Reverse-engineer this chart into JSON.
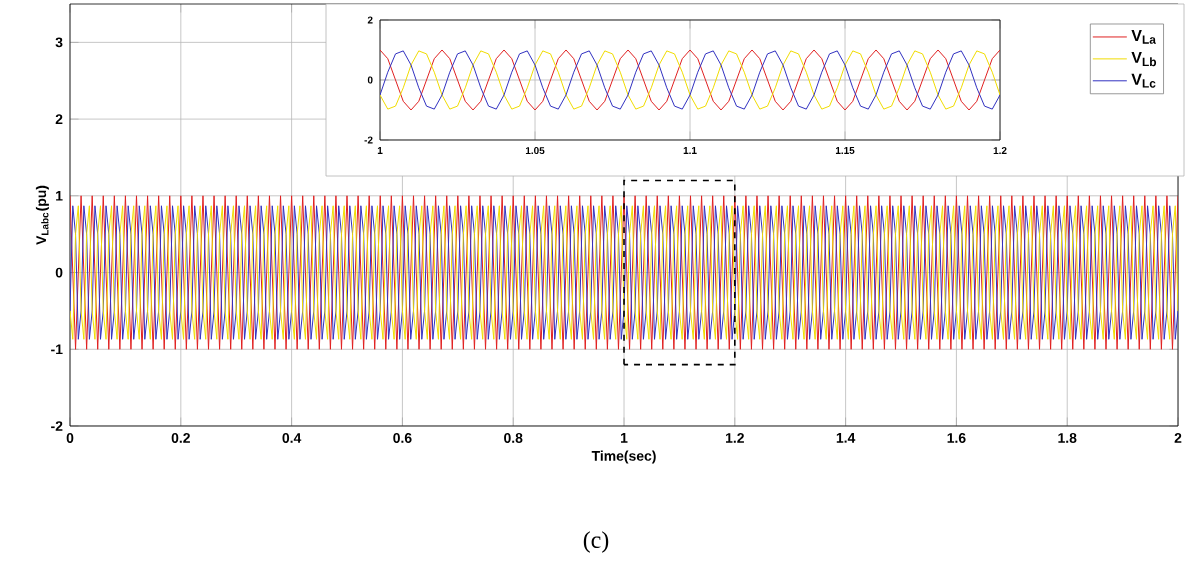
{
  "chart_data": [
    {
      "type": "line",
      "xlabel": "Time(sec)",
      "ylabel": "V$_{Labc}$(pu)",
      "xlim": [
        0,
        2
      ],
      "ylim": [
        -2,
        3.5
      ],
      "xticks": [
        0,
        0.2,
        0.4,
        0.6,
        0.8,
        1,
        1.2,
        1.4,
        1.6,
        1.8,
        2
      ],
      "yticks": [
        -2,
        -1,
        0,
        1,
        2,
        3
      ],
      "grid": true,
      "x": [
        0,
        0.005,
        0.01,
        0.015,
        0.02,
        0.025,
        0.03,
        0.035,
        0.04,
        0.045,
        0.05,
        0.055,
        0.06,
        0.065,
        0.07,
        0.075,
        0.08,
        0.085,
        0.09,
        0.095,
        0.1,
        0.105,
        0.11,
        0.115,
        0.12,
        0.125,
        0.13,
        0.135,
        0.14,
        0.145,
        0.15,
        0.155,
        0.16,
        0.165,
        0.17,
        0.175,
        0.18,
        0.185,
        0.19,
        0.195,
        0.2,
        0.205,
        0.21,
        0.215,
        0.22,
        0.225,
        0.23,
        0.235,
        0.24,
        0.245,
        0.25,
        0.255,
        0.26,
        0.265,
        0.27,
        0.275,
        0.28,
        0.285,
        0.29,
        0.295,
        0.3,
        0.305,
        0.31,
        0.315,
        0.32,
        0.325,
        0.33,
        0.335,
        0.34,
        0.345,
        0.35,
        0.355,
        0.36,
        0.365,
        0.37,
        0.375,
        0.38,
        0.385,
        0.39,
        0.395,
        0.4,
        0.405,
        0.41,
        0.415,
        0.42,
        0.425,
        0.43,
        0.435,
        0.44,
        0.445,
        0.45,
        0.455,
        0.46,
        0.465,
        0.47,
        0.475,
        0.48,
        0.485,
        0.49,
        0.495,
        0.5,
        0.505,
        0.51,
        0.515,
        0.52,
        0.525,
        0.53,
        0.535,
        0.54,
        0.545,
        0.55,
        0.555,
        0.56,
        0.565,
        0.57,
        0.575,
        0.58,
        0.585,
        0.59,
        0.595,
        0.6,
        0.605,
        0.61,
        0.615,
        0.62,
        0.625,
        0.63,
        0.635,
        0.64,
        0.645,
        0.65,
        0.655,
        0.66,
        0.665,
        0.67,
        0.675,
        0.68,
        0.685,
        0.69,
        0.695,
        0.7,
        0.705,
        0.71,
        0.715,
        0.72,
        0.725,
        0.73,
        0.735,
        0.74,
        0.745,
        0.75,
        0.755,
        0.76,
        0.765,
        0.77,
        0.775,
        0.78,
        0.785,
        0.79,
        0.795,
        0.8,
        0.805,
        0.81,
        0.815,
        0.82,
        0.825,
        0.83,
        0.835,
        0.84,
        0.845,
        0.85,
        0.855,
        0.86,
        0.865,
        0.87,
        0.875,
        0.88,
        0.885,
        0.89,
        0.895,
        0.9,
        0.905,
        0.91,
        0.915,
        0.92,
        0.925,
        0.93,
        0.935,
        0.94,
        0.945,
        0.95,
        0.955,
        0.96,
        0.965,
        0.97,
        0.975,
        0.98,
        0.985,
        0.99,
        0.995,
        1,
        1.005,
        1.01,
        1.015,
        1.02,
        1.025,
        1.03,
        1.035,
        1.04,
        1.045,
        1.05,
        1.055,
        1.06,
        1.065,
        1.07,
        1.075,
        1.08,
        1.085,
        1.09,
        1.095,
        1.1,
        1.105,
        1.11,
        1.115,
        1.12,
        1.125,
        1.13,
        1.135,
        1.14,
        1.145,
        1.15,
        1.155,
        1.16,
        1.165,
        1.17,
        1.175,
        1.18,
        1.185,
        1.19,
        1.195,
        1.2,
        1.205,
        1.21,
        1.215,
        1.22,
        1.225,
        1.23,
        1.235,
        1.24,
        1.245,
        1.25,
        1.255,
        1.26,
        1.265,
        1.27,
        1.275,
        1.28,
        1.285,
        1.29,
        1.295,
        1.3,
        1.305,
        1.31,
        1.315,
        1.32,
        1.325,
        1.33,
        1.335,
        1.34,
        1.345,
        1.35,
        1.355,
        1.36,
        1.365,
        1.37,
        1.375,
        1.38,
        1.385,
        1.39,
        1.395,
        1.4,
        1.405,
        1.41,
        1.415,
        1.42,
        1.425,
        1.43,
        1.435,
        1.44,
        1.445,
        1.45,
        1.455,
        1.46,
        1.465,
        1.47,
        1.475,
        1.48,
        1.485,
        1.49,
        1.495,
        1.5,
        1.505,
        1.51,
        1.515,
        1.52,
        1.525,
        1.53,
        1.535,
        1.54,
        1.545,
        1.55,
        1.555,
        1.56,
        1.565,
        1.57,
        1.575,
        1.58,
        1.585,
        1.59,
        1.595,
        1.6,
        1.605,
        1.61,
        1.615,
        1.62,
        1.625,
        1.63,
        1.635,
        1.64,
        1.645,
        1.65,
        1.655,
        1.66,
        1.665,
        1.67,
        1.675,
        1.68,
        1.685,
        1.69,
        1.695,
        1.7,
        1.705,
        1.71,
        1.715,
        1.72,
        1.725,
        1.73,
        1.735,
        1.74,
        1.745,
        1.75,
        1.755,
        1.76,
        1.765,
        1.77,
        1.775,
        1.78,
        1.785,
        1.79,
        1.795,
        1.8,
        1.805,
        1.81,
        1.815,
        1.82,
        1.825,
        1.83,
        1.835,
        1.84,
        1.845,
        1.85,
        1.855,
        1.86,
        1.865,
        1.87,
        1.875,
        1.88,
        1.885,
        1.89,
        1.895,
        1.9,
        1.905,
        1.91,
        1.915,
        1.92,
        1.925,
        1.93,
        1.935,
        1.94,
        1.945,
        1.95,
        1.955,
        1.96,
        1.965,
        1.97,
        1.975,
        1.98,
        1.985,
        1.99,
        1.995,
        2
      ],
      "series": [
        {
          "color": "#e02020",
          "values": [
            1,
            0,
            -1,
            0,
            1,
            0,
            -1,
            0,
            1,
            0,
            -1,
            0,
            1,
            0,
            -1,
            0,
            1,
            0,
            -1,
            0,
            1,
            0,
            -1,
            0,
            1,
            0,
            -1,
            0,
            1,
            0,
            -1,
            0,
            1,
            0,
            -1,
            0,
            1,
            0,
            -1,
            0,
            1,
            0,
            -1,
            0,
            1,
            0,
            -1,
            0,
            1,
            0,
            -1,
            0,
            1,
            0,
            -1,
            0,
            1,
            0,
            -1,
            0,
            1,
            0,
            -1,
            0,
            1,
            0,
            -1,
            0,
            1,
            0,
            -1,
            0,
            1,
            0,
            -1,
            0,
            1,
            0,
            -1,
            0,
            1,
            0,
            -1,
            0,
            1,
            0,
            -1,
            0,
            1,
            0,
            -1,
            0,
            1,
            0,
            -1,
            0,
            1,
            0,
            -1,
            0,
            1,
            0,
            -1,
            0,
            1,
            0,
            -1,
            0,
            1,
            0,
            -1,
            0,
            1,
            0,
            -1,
            0,
            1,
            0,
            -1,
            0,
            1,
            0,
            -1,
            0,
            1,
            0,
            -1,
            0,
            1,
            0,
            -1,
            0,
            1,
            0,
            -1,
            0,
            1,
            0,
            -1,
            0,
            1,
            0,
            -1,
            0,
            1,
            0,
            -1,
            0,
            1,
            0,
            -1,
            0,
            1,
            0,
            -1,
            0,
            1,
            0,
            -1,
            0,
            1,
            0,
            -1,
            0,
            1,
            0,
            -1,
            0,
            1,
            0,
            -1,
            0,
            1,
            0,
            -1,
            0,
            1,
            0,
            -1,
            0,
            1,
            0,
            -1,
            0,
            1,
            0,
            -1,
            0,
            1,
            0,
            -1,
            0,
            1,
            0,
            -1,
            0,
            1,
            0,
            -1,
            0,
            1,
            0,
            -1,
            0,
            1,
            0,
            -1,
            0,
            1,
            0,
            -1,
            0,
            1,
            0,
            -1,
            0,
            1,
            0,
            -1,
            0,
            1,
            0,
            -1,
            0,
            1,
            0,
            -1,
            0,
            1,
            0,
            -1,
            0,
            1,
            0,
            -1,
            0,
            1,
            0,
            -1,
            0,
            1,
            0,
            -1,
            0,
            1,
            0,
            -1,
            0,
            1,
            0,
            -1,
            0,
            1,
            0,
            -1,
            0,
            1,
            0,
            -1,
            0,
            1,
            0,
            -1,
            0,
            1,
            0,
            -1,
            0,
            1,
            0,
            -1,
            0,
            1,
            0,
            -1,
            0,
            1,
            0,
            -1,
            0,
            1,
            0,
            -1,
            0,
            1,
            0,
            -1,
            0,
            1,
            0,
            -1,
            0,
            1,
            0,
            -1,
            0,
            1,
            0,
            -1,
            0,
            1,
            0,
            -1,
            0,
            1,
            0,
            -1,
            0,
            1,
            0,
            -1,
            0,
            1,
            0,
            -1,
            0,
            1,
            0,
            -1,
            0,
            1,
            0,
            -1,
            0,
            1,
            0,
            -1,
            0,
            1,
            0,
            -1,
            0,
            1,
            0,
            -1,
            0,
            1,
            0,
            -1,
            0,
            1,
            0,
            -1,
            0,
            1,
            0,
            -1,
            0,
            1,
            0,
            -1,
            0,
            1,
            0,
            -1,
            0,
            1,
            0,
            -1,
            0,
            1,
            0,
            -1,
            0,
            1,
            0,
            -1,
            0,
            1,
            0,
            -1,
            0,
            1,
            0,
            -1,
            0,
            1,
            0,
            -1,
            0,
            1,
            0,
            -1,
            0,
            1,
            0,
            -1,
            0,
            1,
            0,
            -1,
            0,
            1,
            0,
            -1,
            0,
            1,
            0,
            -1,
            0,
            1
          ]
        },
        {
          "color": "#3030c0",
          "values": [
            -0.5,
            0.87,
            0.5,
            -0.87,
            -0.5,
            0.87,
            0.5,
            -0.87,
            -0.5,
            0.87,
            0.5,
            -0.87,
            -0.5,
            0.87,
            0.5,
            -0.87,
            -0.5,
            0.87,
            0.5,
            -0.87,
            -0.5,
            0.87,
            0.5,
            -0.87,
            -0.5,
            0.87,
            0.5,
            -0.87,
            -0.5,
            0.87,
            0.5,
            -0.87,
            -0.5,
            0.87,
            0.5,
            -0.87,
            -0.5,
            0.87,
            0.5,
            -0.87,
            -0.5,
            0.87,
            0.5,
            -0.87,
            -0.5,
            0.87,
            0.5,
            -0.87,
            -0.5,
            0.87,
            0.5,
            -0.87,
            -0.5,
            0.87,
            0.5,
            -0.87,
            -0.5,
            0.87,
            0.5,
            -0.87,
            -0.5,
            0.87,
            0.5,
            -0.87,
            -0.5,
            0.87,
            0.5,
            -0.87,
            -0.5,
            0.87,
            0.5,
            -0.87,
            -0.5,
            0.87,
            0.5,
            -0.87,
            -0.5,
            0.87,
            0.5,
            -0.87,
            -0.5,
            0.87,
            0.5,
            -0.87,
            -0.5,
            0.87,
            0.5,
            -0.87,
            -0.5,
            0.87,
            0.5,
            -0.87,
            -0.5,
            0.87,
            0.5,
            -0.87,
            -0.5,
            0.87,
            0.5,
            -0.87,
            -0.5,
            0.87,
            0.5,
            -0.87,
            -0.5,
            0.87,
            0.5,
            -0.87,
            -0.5,
            0.87,
            0.5,
            -0.87,
            -0.5,
            0.87,
            0.5,
            -0.87,
            -0.5,
            0.87,
            0.5,
            -0.87,
            -0.5,
            0.87,
            0.5,
            -0.87,
            -0.5,
            0.87,
            0.5,
            -0.87,
            -0.5,
            0.87,
            0.5,
            -0.87,
            -0.5,
            0.87,
            0.5,
            -0.87,
            -0.5,
            0.87,
            0.5,
            -0.87,
            -0.5,
            0.87,
            0.5,
            -0.87,
            -0.5,
            0.87,
            0.5,
            -0.87,
            -0.5,
            0.87,
            0.5,
            -0.87,
            -0.5,
            0.87,
            0.5,
            -0.87,
            -0.5,
            0.87,
            0.5,
            -0.87,
            -0.5,
            0.87,
            0.5,
            -0.87,
            -0.5,
            0.87,
            0.5,
            -0.87,
            -0.5,
            0.87,
            0.5,
            -0.87,
            -0.5,
            0.87,
            0.5,
            -0.87,
            -0.5,
            0.87,
            0.5,
            -0.87,
            -0.5,
            0.87,
            0.5,
            -0.87,
            -0.5,
            0.87,
            0.5,
            -0.87,
            -0.5,
            0.87,
            0.5,
            -0.87,
            -0.5,
            0.87,
            0.5,
            -0.87,
            -0.5,
            0.87,
            0.5,
            -0.87,
            -0.5,
            0.87,
            0.5,
            -0.87,
            -0.5,
            0.87,
            0.5,
            -0.87,
            -0.5,
            0.87,
            0.5,
            -0.87,
            -0.5,
            0.87,
            0.5,
            -0.87,
            -0.5,
            0.87,
            0.5,
            -0.87,
            -0.5,
            0.87,
            0.5,
            -0.87,
            -0.5,
            0.87,
            0.5,
            -0.87,
            -0.5,
            0.87,
            0.5,
            -0.87,
            -0.5,
            0.87,
            0.5,
            -0.87,
            -0.5,
            0.87,
            0.5,
            -0.87,
            -0.5,
            0.87,
            0.5,
            -0.87,
            -0.5,
            0.87,
            0.5,
            -0.87,
            -0.5,
            0.87,
            0.5,
            -0.87,
            -0.5,
            0.87,
            0.5,
            -0.87,
            -0.5,
            0.87,
            0.5,
            -0.87,
            -0.5,
            0.87,
            0.5,
            -0.87,
            -0.5,
            0.87,
            0.5,
            -0.87,
            -0.5,
            0.87,
            0.5,
            -0.87,
            -0.5,
            0.87,
            0.5,
            -0.87,
            -0.5,
            0.87,
            0.5,
            -0.87,
            -0.5,
            0.87,
            0.5,
            -0.87,
            -0.5,
            0.87,
            0.5,
            -0.87,
            -0.5,
            0.87,
            0.5,
            -0.87,
            -0.5,
            0.87,
            0.5,
            -0.87,
            -0.5,
            0.87,
            0.5,
            -0.87,
            -0.5,
            0.87,
            0.5,
            -0.87,
            -0.5,
            0.87,
            0.5,
            -0.87,
            -0.5,
            0.87,
            0.5,
            -0.87,
            -0.5,
            0.87,
            0.5,
            -0.87,
            -0.5,
            0.87,
            0.5,
            -0.87,
            -0.5,
            0.87,
            0.5,
            -0.87,
            -0.5,
            0.87,
            0.5,
            -0.87,
            -0.5,
            0.87,
            0.5,
            -0.87,
            -0.5,
            0.87,
            0.5,
            -0.87,
            -0.5,
            0.87,
            0.5,
            -0.87,
            -0.5,
            0.87,
            0.5,
            -0.87,
            -0.5,
            0.87,
            0.5,
            -0.87,
            -0.5,
            0.87,
            0.5,
            -0.87,
            -0.5,
            0.87,
            0.5,
            -0.87,
            -0.5,
            0.87,
            0.5,
            -0.87,
            -0.5,
            0.87,
            0.5,
            -0.87,
            -0.5,
            0.87,
            0.5,
            -0.87,
            -0.5,
            0.87,
            0.5,
            -0.87,
            -0.5,
            0.87,
            0.5,
            -0.87,
            -0.5,
            0.87,
            0.5,
            -0.87,
            -0.5,
            0.87,
            0.5,
            -0.87,
            -0.5,
            0.87,
            0.5,
            -0.87,
            -0.5,
            0.87,
            0.5,
            -0.87,
            -0.5,
            0.87,
            0.5,
            -0.87,
            -0.5,
            0.87,
            0.5,
            -0.87,
            -0.5
          ]
        },
        {
          "color": "#f0dc00",
          "values": [
            -0.5,
            -0.87,
            0.5,
            0.87,
            -0.5,
            -0.87,
            0.5,
            0.87,
            -0.5,
            -0.87,
            0.5,
            0.87,
            -0.5,
            -0.87,
            0.5,
            0.87,
            -0.5,
            -0.87,
            0.5,
            0.87,
            -0.5,
            -0.87,
            0.5,
            0.87,
            -0.5,
            -0.87,
            0.5,
            0.87,
            -0.5,
            -0.87,
            0.5,
            0.87,
            -0.5,
            -0.87,
            0.5,
            0.87,
            -0.5,
            -0.87,
            0.5,
            0.87,
            -0.5,
            -0.87,
            0.5,
            0.87,
            -0.5,
            -0.87,
            0.5,
            0.87,
            -0.5,
            -0.87,
            0.5,
            0.87,
            -0.5,
            -0.87,
            0.5,
            0.87,
            -0.5,
            -0.87,
            0.5,
            0.87,
            -0.5,
            -0.87,
            0.5,
            0.87,
            -0.5,
            -0.87,
            0.5,
            0.87,
            -0.5,
            -0.87,
            0.5,
            0.87,
            -0.5,
            -0.87,
            0.5,
            0.87,
            -0.5,
            -0.87,
            0.5,
            0.87,
            -0.5,
            -0.87,
            0.5,
            0.87,
            -0.5,
            -0.87,
            0.5,
            0.87,
            -0.5,
            -0.87,
            0.5,
            0.87,
            -0.5,
            -0.87,
            0.5,
            0.87,
            -0.5,
            -0.87,
            0.5,
            0.87,
            -0.5,
            -0.87,
            0.5,
            0.87,
            -0.5,
            -0.87,
            0.5,
            0.87,
            -0.5,
            -0.87,
            0.5,
            0.87,
            -0.5,
            -0.87,
            0.5,
            0.87,
            -0.5,
            -0.87,
            0.5,
            0.87,
            -0.5,
            -0.87,
            0.5,
            0.87,
            -0.5,
            -0.87,
            0.5,
            0.87,
            -0.5,
            -0.87,
            0.5,
            0.87,
            -0.5,
            -0.87,
            0.5,
            0.87,
            -0.5,
            -0.87,
            0.5,
            0.87,
            -0.5,
            -0.87,
            0.5,
            0.87,
            -0.5,
            -0.87,
            0.5,
            0.87,
            -0.5,
            -0.87,
            0.5,
            0.87,
            -0.5,
            -0.87,
            0.5,
            0.87,
            -0.5,
            -0.87,
            0.5,
            0.87,
            -0.5,
            -0.87,
            0.5,
            0.87,
            -0.5,
            -0.87,
            0.5,
            0.87,
            -0.5,
            -0.87,
            0.5,
            0.87,
            -0.5,
            -0.87,
            0.5,
            0.87,
            -0.5,
            -0.87,
            0.5,
            0.87,
            -0.5,
            -0.87,
            0.5,
            0.87,
            -0.5,
            -0.87,
            0.5,
            0.87,
            -0.5,
            -0.87,
            0.5,
            0.87,
            -0.5,
            -0.87,
            0.5,
            0.87,
            -0.5,
            -0.87,
            0.5,
            0.87,
            -0.5,
            -0.87,
            0.5,
            0.87,
            -0.5,
            -0.87,
            0.5,
            0.87,
            -0.5,
            -0.87,
            0.5,
            0.87,
            -0.5,
            -0.87,
            0.5,
            0.87,
            -0.5,
            -0.87,
            0.5,
            0.87,
            -0.5,
            -0.87,
            0.5,
            0.87,
            -0.5,
            -0.87,
            0.5,
            0.87,
            -0.5,
            -0.87,
            0.5,
            0.87,
            -0.5,
            -0.87,
            0.5,
            0.87,
            -0.5,
            -0.87,
            0.5,
            0.87,
            -0.5,
            -0.87,
            0.5,
            0.87,
            -0.5,
            -0.87,
            0.5,
            0.87,
            -0.5,
            -0.87,
            0.5,
            0.87,
            -0.5,
            -0.87,
            0.5,
            0.87,
            -0.5,
            -0.87,
            0.5,
            0.87,
            -0.5,
            -0.87,
            0.5,
            0.87,
            -0.5,
            -0.87,
            0.5,
            0.87,
            -0.5,
            -0.87,
            0.5,
            0.87,
            -0.5,
            -0.87,
            0.5,
            0.87,
            -0.5,
            -0.87,
            0.5,
            0.87,
            -0.5,
            -0.87,
            0.5,
            0.87,
            -0.5,
            -0.87,
            0.5,
            0.87,
            -0.5,
            -0.87,
            0.5,
            0.87,
            -0.5,
            -0.87,
            0.5,
            0.87,
            -0.5,
            -0.87,
            0.5,
            0.87,
            -0.5,
            -0.87,
            0.5,
            0.87,
            -0.5,
            -0.87,
            0.5,
            0.87,
            -0.5,
            -0.87,
            0.5,
            0.87,
            -0.5,
            -0.87,
            0.5,
            0.87,
            -0.5,
            -0.87,
            0.5,
            0.87,
            -0.5,
            -0.87,
            0.5,
            0.87,
            -0.5,
            -0.87,
            0.5,
            0.87,
            -0.5,
            -0.87,
            0.5,
            0.87,
            -0.5,
            -0.87,
            0.5,
            0.87,
            -0.5,
            -0.87,
            0.5,
            0.87,
            -0.5,
            -0.87,
            0.5,
            0.87,
            -0.5,
            -0.87,
            0.5,
            0.87,
            -0.5,
            -0.87,
            0.5,
            0.87,
            -0.5,
            -0.87,
            0.5,
            0.87,
            -0.5,
            -0.87,
            0.5,
            0.87,
            -0.5,
            -0.87,
            0.5,
            0.87,
            -0.5,
            -0.87,
            0.5,
            0.87,
            -0.5,
            -0.87,
            0.5,
            0.87,
            -0.5,
            -0.87,
            0.5,
            0.87,
            -0.5,
            -0.87,
            0.5,
            0.87,
            -0.5,
            -0.87,
            0.5,
            0.87,
            -0.5,
            -0.87,
            0.5,
            0.87,
            -0.5,
            -0.87,
            0.5,
            0.87,
            -0.5,
            -0.87,
            0.5,
            0.87,
            -0.5,
            -0.87,
            0.5,
            0.87,
            -0.5
          ]
        }
      ],
      "annotations": [
        "(c)"
      ]
    },
    {
      "type": "line",
      "xlim": [
        1,
        1.2
      ],
      "ylim": [
        -2,
        2
      ],
      "xticks": [
        1,
        1.05,
        1.1,
        1.15,
        1.2
      ],
      "yticks": [
        -2,
        0,
        2
      ],
      "grid": true,
      "legend": "right",
      "x": [
        1,
        1.0025,
        1.005,
        1.0075,
        1.01,
        1.0125,
        1.015,
        1.0175,
        1.02,
        1.0225,
        1.025,
        1.0275,
        1.03,
        1.0325,
        1.035,
        1.0375,
        1.04,
        1.0425,
        1.045,
        1.0475,
        1.05,
        1.0525,
        1.055,
        1.0575,
        1.06,
        1.0625,
        1.065,
        1.0675,
        1.07,
        1.0725,
        1.075,
        1.0775,
        1.08,
        1.0825,
        1.085,
        1.0875,
        1.09,
        1.0925,
        1.095,
        1.0975,
        1.1,
        1.1025,
        1.105,
        1.1075,
        1.11,
        1.1125,
        1.115,
        1.1175,
        1.12,
        1.1225,
        1.125,
        1.1275,
        1.13,
        1.1325,
        1.135,
        1.1375,
        1.14,
        1.1425,
        1.145,
        1.1475,
        1.15,
        1.1525,
        1.155,
        1.1575,
        1.16,
        1.1625,
        1.165,
        1.1675,
        1.17,
        1.1725,
        1.175,
        1.1775,
        1.18,
        1.1825,
        1.185,
        1.1875,
        1.19,
        1.1925,
        1.195,
        1.1975,
        1.2
      ],
      "series": [
        {
          "name": "V$_{La}$",
          "color": "#e02020",
          "values": [
            1,
            0.71,
            0,
            -0.71,
            -1,
            -0.71,
            0,
            0.71,
            1,
            0.71,
            0,
            -0.71,
            -1,
            -0.71,
            0,
            0.71,
            1,
            0.71,
            0,
            -0.71,
            -1,
            -0.71,
            0,
            0.71,
            1,
            0.71,
            0,
            -0.71,
            -1,
            -0.71,
            0,
            0.71,
            1,
            0.71,
            0,
            -0.71,
            -1,
            -0.71,
            0,
            0.71,
            1,
            0.71,
            0,
            -0.71,
            -1,
            -0.71,
            0,
            0.71,
            1,
            0.71,
            0,
            -0.71,
            -1,
            -0.71,
            0,
            0.71,
            1,
            0.71,
            0,
            -0.71,
            -1,
            -0.71,
            0,
            0.71,
            1,
            0.71,
            0,
            -0.71,
            -1,
            -0.71,
            0,
            0.71,
            1,
            0.71,
            0,
            -0.71,
            -1,
            -0.71,
            0,
            0.71,
            1
          ]
        },
        {
          "name": "V$_{Lb}$",
          "color": "#f0dc00",
          "values": [
            -0.5,
            -0.97,
            -0.87,
            -0.26,
            0.5,
            0.97,
            0.87,
            0.26,
            -0.5,
            -0.97,
            -0.87,
            -0.26,
            0.5,
            0.97,
            0.87,
            0.26,
            -0.5,
            -0.97,
            -0.87,
            -0.26,
            0.5,
            0.97,
            0.87,
            0.26,
            -0.5,
            -0.97,
            -0.87,
            -0.26,
            0.5,
            0.97,
            0.87,
            0.26,
            -0.5,
            -0.97,
            -0.87,
            -0.26,
            0.5,
            0.97,
            0.87,
            0.26,
            -0.5,
            -0.97,
            -0.87,
            -0.26,
            0.5,
            0.97,
            0.87,
            0.26,
            -0.5,
            -0.97,
            -0.87,
            -0.26,
            0.5,
            0.97,
            0.87,
            0.26,
            -0.5,
            -0.97,
            -0.87,
            -0.26,
            0.5,
            0.97,
            0.87,
            0.26,
            -0.5,
            -0.97,
            -0.87,
            -0.26,
            0.5,
            0.97,
            0.87,
            0.26,
            -0.5,
            -0.97,
            -0.87,
            -0.26,
            0.5,
            0.97,
            0.87,
            0.26,
            -0.5
          ]
        },
        {
          "name": "V$_{Lc}$",
          "color": "#3030c0",
          "values": [
            -0.5,
            0.26,
            0.87,
            0.97,
            0.5,
            -0.26,
            -0.87,
            -0.97,
            -0.5,
            0.26,
            0.87,
            0.97,
            0.5,
            -0.26,
            -0.87,
            -0.97,
            -0.5,
            0.26,
            0.87,
            0.97,
            0.5,
            -0.26,
            -0.87,
            -0.97,
            -0.5,
            0.26,
            0.87,
            0.97,
            0.5,
            -0.26,
            -0.87,
            -0.97,
            -0.5,
            0.26,
            0.87,
            0.97,
            0.5,
            -0.26,
            -0.87,
            -0.97,
            -0.5,
            0.26,
            0.87,
            0.97,
            0.5,
            -0.26,
            -0.87,
            -0.97,
            -0.5,
            0.26,
            0.87,
            0.97,
            0.5,
            -0.26,
            -0.87,
            -0.97,
            -0.5,
            0.26,
            0.87,
            0.97,
            0.5,
            -0.26,
            -0.87,
            -0.97,
            -0.5,
            0.26,
            0.87,
            0.97,
            0.5,
            -0.26,
            -0.87,
            -0.97,
            -0.5,
            0.26,
            0.87,
            0.97,
            0.5,
            -0.26,
            -0.87,
            -0.97,
            -0.5
          ]
        }
      ]
    }
  ]
}
